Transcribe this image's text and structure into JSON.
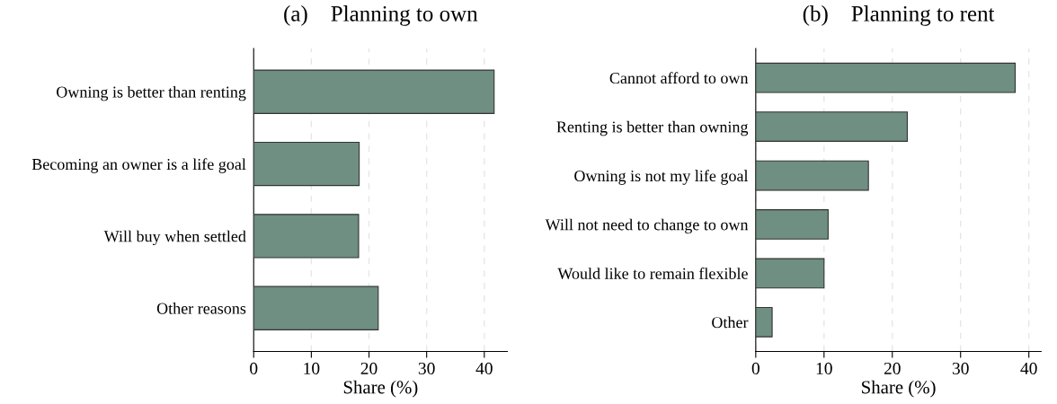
{
  "chart_data": [
    {
      "type": "bar",
      "orientation": "horizontal",
      "title": "(a)    Planning to own",
      "xlabel": "Share (%)",
      "categories": [
        "Owning is better than renting",
        "Becoming an owner is a life goal",
        "Will buy when settled",
        "Other reasons"
      ],
      "values": [
        41.7,
        18.3,
        18.2,
        21.6
      ],
      "color": "#6e8f81",
      "xlim": [
        0,
        44
      ],
      "xticks": [
        0,
        10,
        20,
        30,
        40
      ],
      "grid": "x"
    },
    {
      "type": "bar",
      "orientation": "horizontal",
      "title": "(b)    Planning to rent",
      "xlabel": "Share (%)",
      "categories": [
        "Cannot afford to own",
        "Renting is better than owning",
        "Owning is not my life goal",
        "Will not need to change to own",
        "Would like to remain flexible",
        "Other"
      ],
      "values": [
        38.0,
        22.2,
        16.5,
        10.6,
        10.0,
        2.4
      ],
      "color": "#6e8f81",
      "xlim": [
        0,
        41.8
      ],
      "xticks": [
        0,
        10,
        20,
        30,
        40
      ],
      "grid": "x"
    }
  ]
}
